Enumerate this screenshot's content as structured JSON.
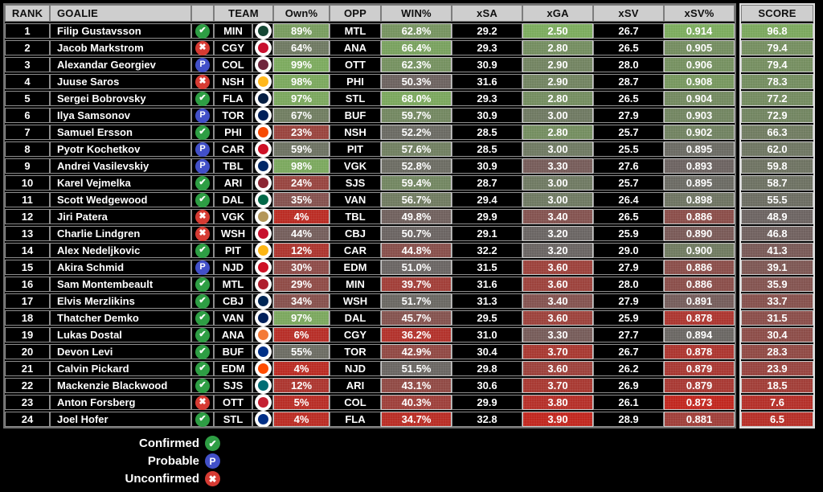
{
  "table": {
    "headers": {
      "rank": "RANK",
      "goalie": "GOALIE",
      "team": "TEAM",
      "own": "Own%",
      "opp": "OPP",
      "win": "WIN%",
      "xsa": "xSA",
      "xga": "xGA",
      "xsv": "xSV",
      "xsvpct": "xSV%",
      "score": "SCORE"
    },
    "rows": [
      {
        "rank": "1",
        "goalie": "Filip Gustavsson",
        "status": "confirmed",
        "team": "MIN",
        "own": "89%",
        "opp": "MTL",
        "win": "62.8%",
        "xsa": "29.2",
        "xga": "2.50",
        "xsv": "26.7",
        "xsvpct": "0.914",
        "score": "96.8"
      },
      {
        "rank": "2",
        "goalie": "Jacob Markstrom",
        "status": "unconfirmed",
        "team": "CGY",
        "own": "64%",
        "opp": "ANA",
        "win": "66.4%",
        "xsa": "29.3",
        "xga": "2.80",
        "xsv": "26.5",
        "xsvpct": "0.905",
        "score": "79.4"
      },
      {
        "rank": "3",
        "goalie": "Alexandar Georgiev",
        "status": "probable",
        "team": "COL",
        "own": "99%",
        "opp": "OTT",
        "win": "62.3%",
        "xsa": "30.9",
        "xga": "2.90",
        "xsv": "28.0",
        "xsvpct": "0.906",
        "score": "79.4"
      },
      {
        "rank": "4",
        "goalie": "Juuse Saros",
        "status": "unconfirmed",
        "team": "NSH",
        "own": "98%",
        "opp": "PHI",
        "win": "50.3%",
        "xsa": "31.6",
        "xga": "2.90",
        "xsv": "28.7",
        "xsvpct": "0.908",
        "score": "78.3"
      },
      {
        "rank": "5",
        "goalie": "Sergei Bobrovsky",
        "status": "confirmed",
        "team": "FLA",
        "own": "97%",
        "opp": "STL",
        "win": "68.0%",
        "xsa": "29.3",
        "xga": "2.80",
        "xsv": "26.5",
        "xsvpct": "0.904",
        "score": "77.2"
      },
      {
        "rank": "6",
        "goalie": "Ilya Samsonov",
        "status": "probable",
        "team": "TOR",
        "own": "67%",
        "opp": "BUF",
        "win": "59.7%",
        "xsa": "30.9",
        "xga": "3.00",
        "xsv": "27.9",
        "xsvpct": "0.903",
        "score": "72.9"
      },
      {
        "rank": "7",
        "goalie": "Samuel Ersson",
        "status": "confirmed",
        "team": "PHI",
        "own": "23%",
        "opp": "NSH",
        "win": "52.2%",
        "xsa": "28.5",
        "xga": "2.80",
        "xsv": "25.7",
        "xsvpct": "0.902",
        "score": "66.3"
      },
      {
        "rank": "8",
        "goalie": "Pyotr Kochetkov",
        "status": "probable",
        "team": "CAR",
        "own": "59%",
        "opp": "PIT",
        "win": "57.6%",
        "xsa": "28.5",
        "xga": "3.00",
        "xsv": "25.5",
        "xsvpct": "0.895",
        "score": "62.0"
      },
      {
        "rank": "9",
        "goalie": "Andrei Vasilevskiy",
        "status": "probable",
        "team": "TBL",
        "own": "98%",
        "opp": "VGK",
        "win": "52.8%",
        "xsa": "30.9",
        "xga": "3.30",
        "xsv": "27.6",
        "xsvpct": "0.893",
        "score": "59.8"
      },
      {
        "rank": "10",
        "goalie": "Karel Vejmelka",
        "status": "confirmed",
        "team": "ARI",
        "own": "24%",
        "opp": "SJS",
        "win": "59.4%",
        "xsa": "28.7",
        "xga": "3.00",
        "xsv": "25.7",
        "xsvpct": "0.895",
        "score": "58.7"
      },
      {
        "rank": "11",
        "goalie": "Scott Wedgewood",
        "status": "confirmed",
        "team": "DAL",
        "own": "35%",
        "opp": "VAN",
        "win": "56.7%",
        "xsa": "29.4",
        "xga": "3.00",
        "xsv": "26.4",
        "xsvpct": "0.898",
        "score": "55.5"
      },
      {
        "rank": "12",
        "goalie": "Jiri Patera",
        "status": "unconfirmed",
        "team": "VGK",
        "own": "4%",
        "opp": "TBL",
        "win": "49.8%",
        "xsa": "29.9",
        "xga": "3.40",
        "xsv": "26.5",
        "xsvpct": "0.886",
        "score": "48.9"
      },
      {
        "rank": "13",
        "goalie": "Charlie Lindgren",
        "status": "unconfirmed",
        "team": "WSH",
        "own": "44%",
        "opp": "CBJ",
        "win": "50.7%",
        "xsa": "29.1",
        "xga": "3.20",
        "xsv": "25.9",
        "xsvpct": "0.890",
        "score": "46.8"
      },
      {
        "rank": "14",
        "goalie": "Alex Nedeljkovic",
        "status": "confirmed",
        "team": "PIT",
        "own": "12%",
        "opp": "CAR",
        "win": "44.8%",
        "xsa": "32.2",
        "xga": "3.20",
        "xsv": "29.0",
        "xsvpct": "0.900",
        "score": "41.3"
      },
      {
        "rank": "15",
        "goalie": "Akira Schmid",
        "status": "probable",
        "team": "NJD",
        "own": "30%",
        "opp": "EDM",
        "win": "51.0%",
        "xsa": "31.5",
        "xga": "3.60",
        "xsv": "27.9",
        "xsvpct": "0.886",
        "score": "39.1"
      },
      {
        "rank": "16",
        "goalie": "Sam Montembeault",
        "status": "confirmed",
        "team": "MTL",
        "own": "29%",
        "opp": "MIN",
        "win": "39.7%",
        "xsa": "31.6",
        "xga": "3.60",
        "xsv": "28.0",
        "xsvpct": "0.886",
        "score": "35.9"
      },
      {
        "rank": "17",
        "goalie": "Elvis Merzlikins",
        "status": "confirmed",
        "team": "CBJ",
        "own": "34%",
        "opp": "WSH",
        "win": "51.7%",
        "xsa": "31.3",
        "xga": "3.40",
        "xsv": "27.9",
        "xsvpct": "0.891",
        "score": "33.7"
      },
      {
        "rank": "18",
        "goalie": "Thatcher Demko",
        "status": "confirmed",
        "team": "VAN",
        "own": "97%",
        "opp": "DAL",
        "win": "45.7%",
        "xsa": "29.5",
        "xga": "3.60",
        "xsv": "25.9",
        "xsvpct": "0.878",
        "score": "31.5"
      },
      {
        "rank": "19",
        "goalie": "Lukas Dostal",
        "status": "confirmed",
        "team": "ANA",
        "own": "6%",
        "opp": "CGY",
        "win": "36.2%",
        "xsa": "31.0",
        "xga": "3.30",
        "xsv": "27.7",
        "xsvpct": "0.894",
        "score": "30.4"
      },
      {
        "rank": "20",
        "goalie": "Devon Levi",
        "status": "confirmed",
        "team": "BUF",
        "own": "55%",
        "opp": "TOR",
        "win": "42.9%",
        "xsa": "30.4",
        "xga": "3.70",
        "xsv": "26.7",
        "xsvpct": "0.878",
        "score": "28.3"
      },
      {
        "rank": "21",
        "goalie": "Calvin Pickard",
        "status": "confirmed",
        "team": "EDM",
        "own": "4%",
        "opp": "NJD",
        "win": "51.5%",
        "xsa": "29.8",
        "xga": "3.60",
        "xsv": "26.2",
        "xsvpct": "0.879",
        "score": "23.9"
      },
      {
        "rank": "22",
        "goalie": "Mackenzie Blackwood",
        "status": "confirmed",
        "team": "SJS",
        "own": "12%",
        "opp": "ARI",
        "win": "43.1%",
        "xsa": "30.6",
        "xga": "3.70",
        "xsv": "26.9",
        "xsvpct": "0.879",
        "score": "18.5"
      },
      {
        "rank": "23",
        "goalie": "Anton Forsberg",
        "status": "unconfirmed",
        "team": "OTT",
        "own": "5%",
        "opp": "COL",
        "win": "40.3%",
        "xsa": "29.9",
        "xga": "3.80",
        "xsv": "26.1",
        "xsvpct": "0.873",
        "score": "7.6"
      },
      {
        "rank": "24",
        "goalie": "Joel Hofer",
        "status": "confirmed",
        "team": "STL",
        "own": "4%",
        "opp": "FLA",
        "win": "34.7%",
        "xsa": "32.8",
        "xga": "3.90",
        "xsv": "28.9",
        "xsvpct": "0.881",
        "score": "6.5"
      }
    ]
  },
  "legend": {
    "items": [
      {
        "label": "Confirmed",
        "status": "confirmed"
      },
      {
        "label": "Probable",
        "status": "probable"
      },
      {
        "label": "Unconfirmed",
        "status": "unconfirmed"
      }
    ]
  },
  "colors": {
    "status": {
      "confirmed": "#2e9e44",
      "probable": "#4250c8",
      "unconfirmed": "#d63b33"
    },
    "scale": {
      "red": "#c1271f",
      "gray": "#6a6563",
      "green": "#7cab5e"
    },
    "header_bg": "#cecece",
    "team": {
      "MIN": "#154734",
      "CGY": "#C8102E",
      "COL": "#6F263D",
      "NSH": "#FFB81C",
      "FLA": "#041E42",
      "TOR": "#00205B",
      "PHI": "#F74902",
      "CAR": "#CE1126",
      "TBL": "#002868",
      "ARI": "#8C2633",
      "DAL": "#006847",
      "VGK": "#B4975A",
      "WSH": "#C8102E",
      "PIT": "#FCB514",
      "NJD": "#CE1126",
      "MTL": "#AF1E2D",
      "CBJ": "#002654",
      "VAN": "#00205B",
      "ANA": "#F47A38",
      "BUF": "#003087",
      "EDM": "#FF4C00",
      "SJS": "#006D75",
      "OTT": "#C52032",
      "STL": "#002F87"
    }
  },
  "color_scale": {
    "columns": {
      "own": {
        "min": 0,
        "max": 100,
        "invert": false
      },
      "win": {
        "min": 33,
        "max": 69,
        "invert": false
      },
      "xga": {
        "min": 2.5,
        "max": 3.9,
        "invert": true
      },
      "xsvpct": {
        "min": 0.873,
        "max": 0.914,
        "invert": false
      },
      "score": {
        "min": 0,
        "max": 100,
        "invert": false
      }
    }
  }
}
